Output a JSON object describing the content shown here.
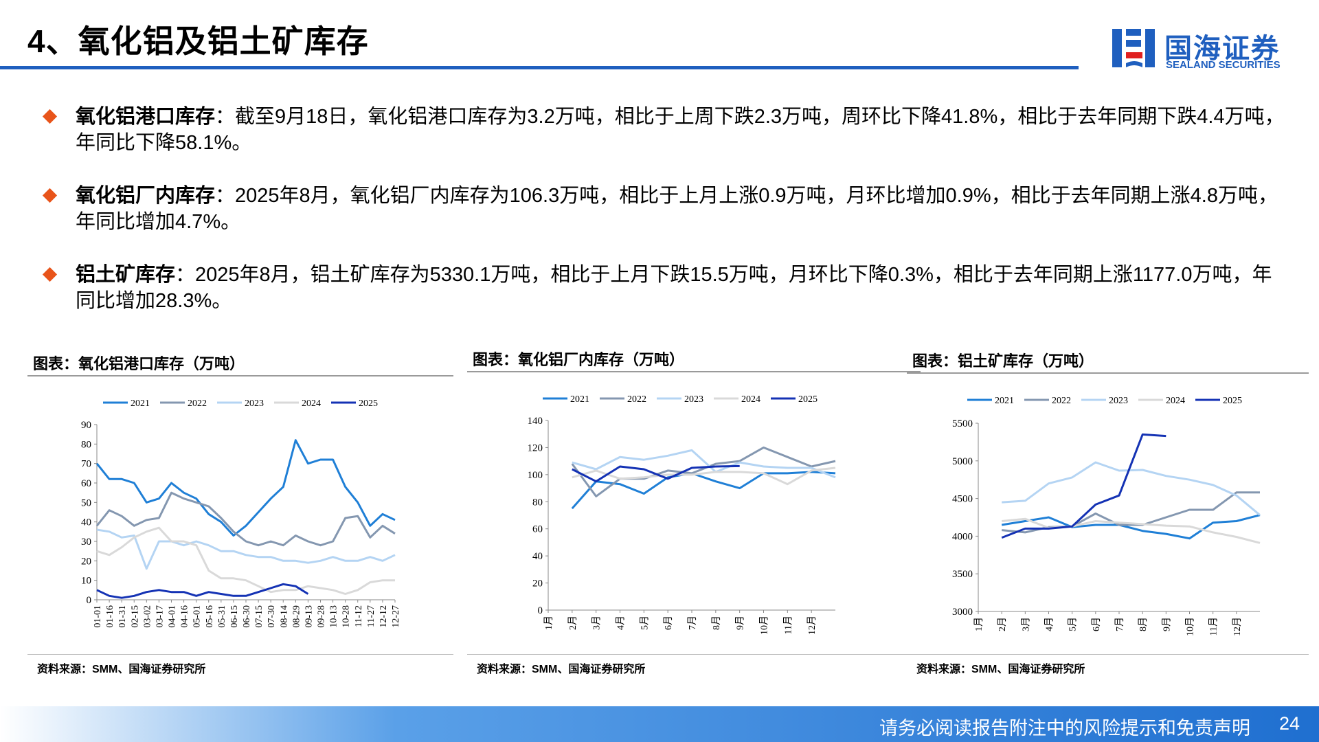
{
  "header": {
    "title": "4、氧化铝及铝土矿库存",
    "logo": {
      "name": "国海证券",
      "name_en": "SEALAND SECURITIES"
    }
  },
  "bullets": [
    {
      "label": "氧化铝港口库存",
      "text": "：截至9月18日，氧化铝港口库存为3.2万吨，相比于上周下跌2.3万吨，周环比下降41.8%，相比于去年同期下跌4.4万吨，年同比下降58.1%。"
    },
    {
      "label": "氧化铝厂内库存",
      "text": "：2025年8月，氧化铝厂内库存为106.3万吨，相比于上月上涨0.9万吨，月环比增加0.9%，相比于去年同期上涨4.8万吨，年同比增加4.7%。"
    },
    {
      "label": "铝土矿库存",
      "text": "：2025年8月，铝土矿库存为5330.1万吨，相比于上月下跌15.5万吨，月环比下降0.3%，相比于去年同期上涨1177.0万吨，年同比增加28.3%。"
    }
  ],
  "chart_data": [
    {
      "type": "line",
      "title": "图表：氧化铝港口库存（万吨）",
      "source": "资料来源：SMM、国海证券研究所",
      "categories": [
        "01-01",
        "01-16",
        "01-31",
        "02-15",
        "03-02",
        "03-17",
        "04-01",
        "04-16",
        "05-01",
        "05-16",
        "05-31",
        "06-15",
        "06-30",
        "07-15",
        "07-30",
        "08-14",
        "08-29",
        "09-13",
        "09-28",
        "10-13",
        "10-28",
        "11-12",
        "11-27",
        "12-12",
        "12-27"
      ],
      "ylim": [
        0,
        90
      ],
      "yticks": [
        0,
        10,
        20,
        30,
        40,
        50,
        60,
        70,
        80,
        90
      ],
      "series": [
        {
          "name": "2021",
          "color": "#1f7fd6",
          "values": [
            70,
            62,
            62,
            60,
            50,
            52,
            60,
            55,
            52,
            44,
            40,
            33,
            38,
            45,
            52,
            58,
            82,
            70,
            72,
            72,
            58,
            50,
            38,
            44,
            41
          ]
        },
        {
          "name": "2022",
          "color": "#8497b0",
          "values": [
            38,
            46,
            43,
            38,
            41,
            42,
            55,
            52,
            50,
            48,
            42,
            35,
            30,
            28,
            30,
            28,
            33,
            30,
            28,
            30,
            42,
            43,
            32,
            38,
            34
          ]
        },
        {
          "name": "2023",
          "color": "#b4d4f3",
          "values": [
            36,
            35,
            32,
            33,
            16,
            30,
            30,
            28,
            30,
            28,
            25,
            25,
            23,
            22,
            22,
            20,
            20,
            19,
            20,
            22,
            20,
            20,
            22,
            20,
            23
          ]
        },
        {
          "name": "2024",
          "color": "#d9d9d9",
          "values": [
            25,
            23,
            27,
            32,
            35,
            37,
            30,
            30,
            28,
            15,
            11,
            11,
            10,
            7,
            4,
            5,
            5,
            7,
            6,
            5,
            3,
            5,
            9,
            10,
            10
          ]
        },
        {
          "name": "2025",
          "color": "#1432b4",
          "values": [
            5,
            2,
            1,
            2,
            4,
            5,
            4,
            4,
            2,
            4,
            3,
            2,
            2,
            4,
            6,
            8,
            7,
            3,
            null,
            null,
            null,
            null,
            null,
            null,
            null
          ]
        }
      ]
    },
    {
      "type": "line",
      "title": "图表：氧化铝厂内库存（万吨）",
      "source": "资料来源：SMM、国海证券研究所",
      "categories": [
        "1月",
        "2月",
        "3月",
        "4月",
        "5月",
        "6月",
        "7月",
        "8月",
        "9月",
        "10月",
        "11月",
        "12月",
        null
      ],
      "ylim": [
        0,
        140
      ],
      "yticks": [
        0,
        20,
        40,
        60,
        80,
        100,
        120,
        140
      ],
      "series": [
        {
          "name": "2021",
          "color": "#1f7fd6",
          "values": [
            null,
            75,
            95,
            93,
            86,
            98,
            101,
            95,
            90,
            101,
            101,
            102,
            101
          ]
        },
        {
          "name": "2022",
          "color": "#8497b0",
          "values": [
            null,
            108,
            84,
            97,
            97,
            103,
            101,
            108,
            110,
            120,
            113,
            106,
            110
          ]
        },
        {
          "name": "2023",
          "color": "#b4d4f3",
          "values": [
            null,
            109,
            104,
            113,
            111,
            114,
            118,
            102,
            109,
            106,
            105,
            105,
            98
          ]
        },
        {
          "name": "2024",
          "color": "#d9d9d9",
          "values": [
            null,
            98,
            103,
            97,
            98,
            100,
            100,
            102,
            102,
            101,
            93,
            103,
            105
          ]
        },
        {
          "name": "2025",
          "color": "#1432b4",
          "values": [
            null,
            104,
            95,
            106,
            104,
            97,
            105,
            106,
            106.3,
            null,
            null,
            null,
            null
          ]
        }
      ]
    },
    {
      "type": "line",
      "title": "图表：铝土矿库存（万吨）",
      "source": "资料来源：SMM、国海证券研究所",
      "categories": [
        "1月",
        "2月",
        "3月",
        "4月",
        "5月",
        "6月",
        "7月",
        "8月",
        "9月",
        "10月",
        "11月",
        "12月",
        null
      ],
      "ylim": [
        3000,
        5500
      ],
      "yticks": [
        3000,
        3500,
        4000,
        4500,
        5000,
        5500
      ],
      "series": [
        {
          "name": "2021",
          "color": "#1f7fd6",
          "values": [
            null,
            4150,
            4200,
            4250,
            4120,
            4150,
            4150,
            4070,
            4030,
            3970,
            4180,
            4200,
            4280
          ]
        },
        {
          "name": "2022",
          "color": "#8497b0",
          "values": [
            null,
            4080,
            4050,
            4120,
            4130,
            4300,
            4150,
            4150,
            4250,
            4350,
            4350,
            4580,
            4580
          ]
        },
        {
          "name": "2023",
          "color": "#b4d4f3",
          "values": [
            null,
            4450,
            4470,
            4700,
            4780,
            4980,
            4870,
            4880,
            4800,
            4750,
            4680,
            4540,
            4280
          ]
        },
        {
          "name": "2024",
          "color": "#d9d9d9",
          "values": [
            null,
            4200,
            4230,
            4110,
            4130,
            4200,
            4180,
            4160,
            4140,
            4130,
            4050,
            3990,
            3910
          ]
        },
        {
          "name": "2025",
          "color": "#1432b4",
          "values": [
            null,
            3980,
            4100,
            4100,
            4130,
            4420,
            4540,
            5350,
            5330.1,
            null,
            null,
            null,
            null
          ]
        }
      ]
    }
  ],
  "footer": {
    "disclaimer": "请务必阅读报告附注中的风险提示和免责声明",
    "page": "24"
  }
}
